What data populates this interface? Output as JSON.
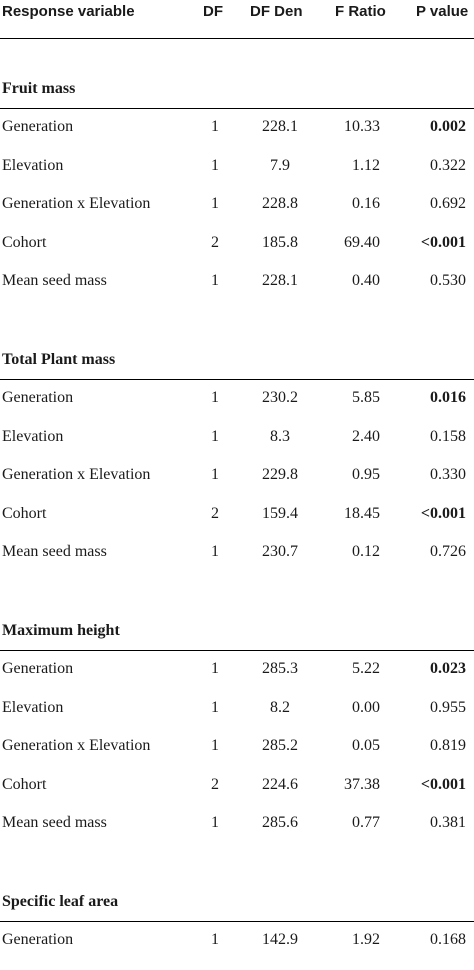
{
  "headers": {
    "variable": "Response variable",
    "df": "DF",
    "df_den": "DF Den",
    "f_ratio": "F Ratio",
    "p_value": "P value"
  },
  "sections": [
    {
      "title": "Fruit mass",
      "rows": [
        {
          "term": "Generation",
          "df": "1",
          "df_den": "228.1",
          "f": "10.33",
          "p": "0.002",
          "sig": true
        },
        {
          "term": "Elevation",
          "df": "1",
          "df_den": "7.9",
          "f": "1.12",
          "p": "0.322",
          "sig": false
        },
        {
          "term": "Generation x Elevation",
          "df": "1",
          "df_den": "228.8",
          "f": "0.16",
          "p": "0.692",
          "sig": false
        },
        {
          "term": "Cohort",
          "df": "2",
          "df_den": "185.8",
          "f": "69.40",
          "p": "<0.001",
          "sig": true
        },
        {
          "term": "Mean seed mass",
          "df": "1",
          "df_den": "228.1",
          "f": "0.40",
          "p": "0.530",
          "sig": false
        }
      ]
    },
    {
      "title": "Total Plant mass",
      "rows": [
        {
          "term": "Generation",
          "df": "1",
          "df_den": "230.2",
          "f": "5.85",
          "p": "0.016",
          "sig": true
        },
        {
          "term": "Elevation",
          "df": "1",
          "df_den": "8.3",
          "f": "2.40",
          "p": "0.158",
          "sig": false
        },
        {
          "term": "Generation x Elevation",
          "df": "1",
          "df_den": "229.8",
          "f": "0.95",
          "p": "0.330",
          "sig": false
        },
        {
          "term": "Cohort",
          "df": "2",
          "df_den": "159.4",
          "f": "18.45",
          "p": "<0.001",
          "sig": true
        },
        {
          "term": "Mean seed mass",
          "df": "1",
          "df_den": "230.7",
          "f": "0.12",
          "p": "0.726",
          "sig": false
        }
      ]
    },
    {
      "title": "Maximum height",
      "rows": [
        {
          "term": "Generation",
          "df": "1",
          "df_den": "285.3",
          "f": "5.22",
          "p": "0.023",
          "sig": true
        },
        {
          "term": "Elevation",
          "df": "1",
          "df_den": "8.2",
          "f": "0.00",
          "p": "0.955",
          "sig": false
        },
        {
          "term": "Generation x Elevation",
          "df": "1",
          "df_den": "285.2",
          "f": "0.05",
          "p": "0.819",
          "sig": false
        },
        {
          "term": "Cohort",
          "df": "2",
          "df_den": "224.6",
          "f": "37.38",
          "p": "<0.001",
          "sig": true
        },
        {
          "term": "Mean seed mass",
          "df": "1",
          "df_den": "285.6",
          "f": "0.77",
          "p": "0.381",
          "sig": false
        }
      ]
    },
    {
      "title": "Specific leaf area",
      "rows": [
        {
          "term": "Generation",
          "df": "1",
          "df_den": "142.9",
          "f": "1.92",
          "p": "0.168",
          "sig": false
        }
      ]
    }
  ]
}
